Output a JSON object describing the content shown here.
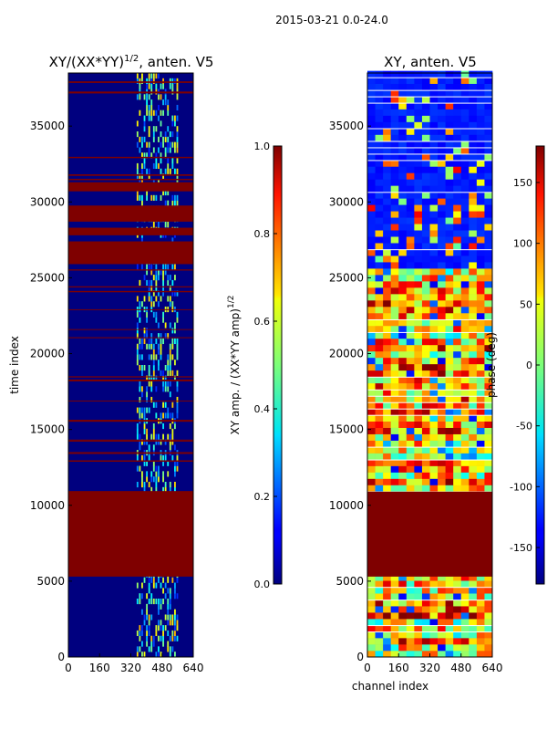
{
  "figure": {
    "suptitle": "2015-03-21 0.0-24.0"
  },
  "chart_data": [
    {
      "type": "heatmap",
      "title_main": "XY/(XX*YY)",
      "title_exp": "1/2",
      "title_tail": ", anten. V5",
      "xlabel": "",
      "ylabel": "time index",
      "xlim": [
        0,
        640
      ],
      "ylim": [
        0,
        38500
      ],
      "xticks": [
        0,
        160,
        320,
        480,
        640
      ],
      "yticks": [
        0,
        5000,
        10000,
        15000,
        20000,
        25000,
        30000,
        35000
      ],
      "saturated_bands": [
        [
          5300,
          10900
        ],
        [
          25900,
          27400
        ],
        [
          27800,
          28300
        ],
        [
          28700,
          29700
        ],
        [
          30700,
          31300
        ]
      ],
      "active_channels": [
        350,
        560
      ],
      "colorbar": {
        "label_main": "XY amp. / (XX*YY amp)",
        "label_exp": "1/2",
        "range": [
          0.0,
          1.0
        ],
        "ticks": [
          "0.0",
          "0.2",
          "0.4",
          "0.6",
          "0.8",
          "1.0"
        ]
      }
    },
    {
      "type": "heatmap",
      "title_main": "XY, anten. V5",
      "xlabel": "channel index",
      "ylabel": "",
      "xlim": [
        0,
        640
      ],
      "ylim": [
        0,
        38500
      ],
      "xticks": [
        0,
        160,
        320,
        480,
        640
      ],
      "yticks": [
        0,
        5000,
        10000,
        15000,
        20000,
        25000,
        30000,
        35000
      ],
      "saturated_bands": [
        [
          5300,
          10900
        ]
      ],
      "noisy_band": [
        0,
        25500
      ],
      "colorbar": {
        "label_main": "phase (deg)",
        "range": [
          -180,
          180
        ],
        "ticks": [
          "-150",
          "-100",
          "-50",
          "0",
          "50",
          "100",
          "150"
        ]
      }
    }
  ]
}
